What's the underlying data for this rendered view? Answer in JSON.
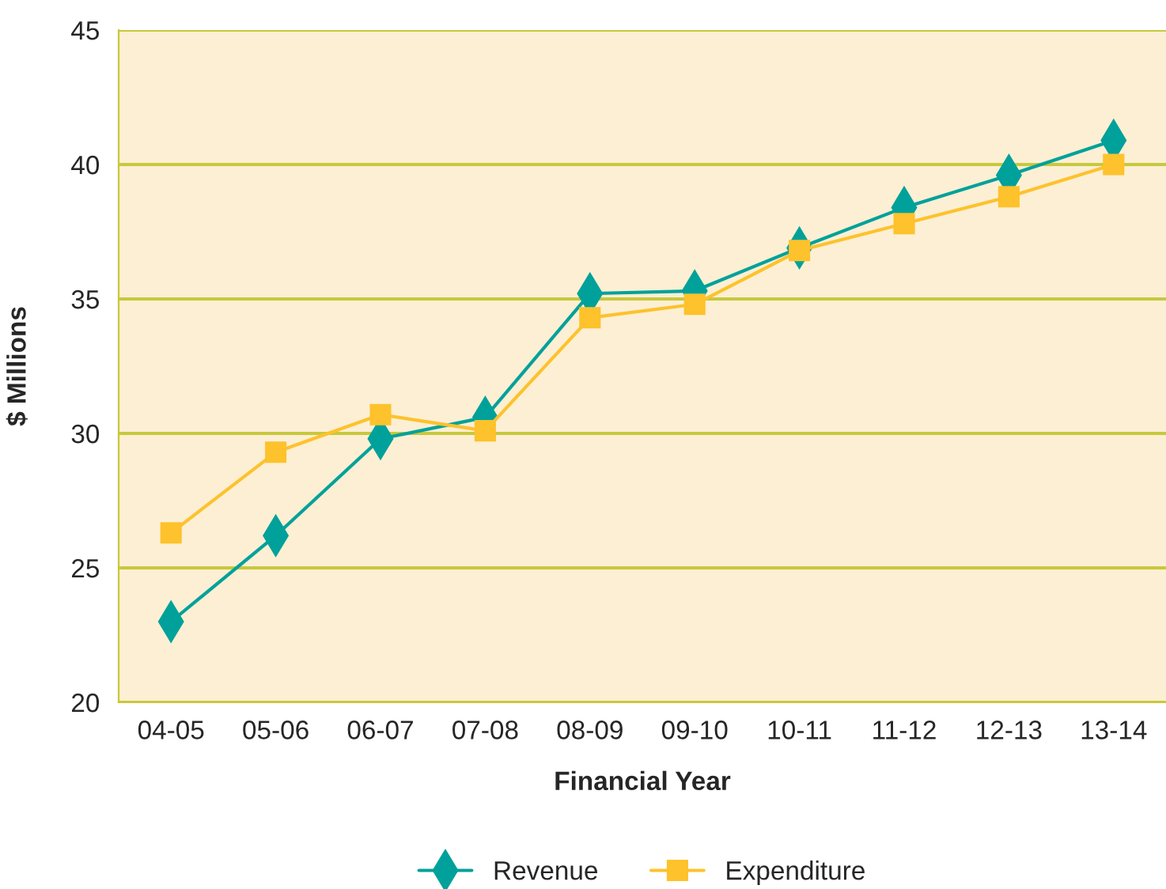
{
  "chart_data": {
    "type": "line",
    "xlabel": "Financial Year",
    "ylabel": "$ Millions",
    "categories": [
      "04-05",
      "05-06",
      "06-07",
      "07-08",
      "08-09",
      "09-10",
      "10-11",
      "11-12",
      "12-13",
      "13-14"
    ],
    "series": [
      {
        "name": "Revenue",
        "color": "#00a19a",
        "marker": "diamond",
        "values": [
          23.0,
          26.2,
          29.8,
          30.6,
          35.2,
          35.3,
          36.9,
          38.4,
          39.6,
          40.9
        ]
      },
      {
        "name": "Expenditure",
        "color": "#fdc22c",
        "marker": "square",
        "values": [
          26.3,
          29.3,
          30.7,
          30.1,
          34.3,
          34.8,
          36.8,
          37.8,
          38.8,
          40.0
        ]
      }
    ],
    "ylim": [
      20,
      45
    ],
    "yticks": [
      20,
      25,
      30,
      35,
      40,
      45
    ],
    "grid": "y",
    "legend": "bottom",
    "line_style": "solid"
  }
}
